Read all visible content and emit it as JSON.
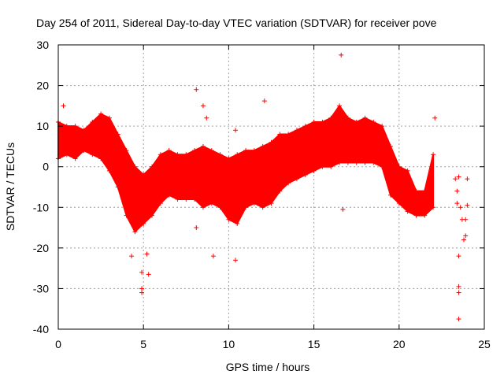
{
  "chart_data": {
    "type": "scatter",
    "title": "Day 254 of 2011, Sidereal Day-to-day VTEC variation (SDTVAR) for receiver pove",
    "xlabel": "GPS time / hours",
    "ylabel": "SDTVAR / TECUs",
    "xlim": [
      0,
      25
    ],
    "ylim": [
      -40,
      30
    ],
    "xticks": [
      0,
      5,
      10,
      15,
      20,
      25
    ],
    "yticks": [
      -40,
      -30,
      -20,
      -10,
      0,
      10,
      20,
      30
    ],
    "grid": true,
    "marker": "+",
    "color": "#ff0000",
    "series": [
      {
        "name": "SDTVAR",
        "band": [
          {
            "x": 0.0,
            "lo": 2,
            "hi": 11
          },
          {
            "x": 0.5,
            "lo": 3,
            "hi": 10
          },
          {
            "x": 1.0,
            "lo": 2,
            "hi": 10
          },
          {
            "x": 1.5,
            "lo": 4,
            "hi": 9
          },
          {
            "x": 2.0,
            "lo": 3,
            "hi": 11
          },
          {
            "x": 2.5,
            "lo": 2,
            "hi": 13
          },
          {
            "x": 3.0,
            "lo": -1,
            "hi": 12
          },
          {
            "x": 3.5,
            "lo": -5,
            "hi": 8
          },
          {
            "x": 4.0,
            "lo": -12,
            "hi": 4
          },
          {
            "x": 4.5,
            "lo": -16,
            "hi": 0
          },
          {
            "x": 5.0,
            "lo": -14,
            "hi": -2
          },
          {
            "x": 5.5,
            "lo": -12,
            "hi": 0
          },
          {
            "x": 6.0,
            "lo": -9,
            "hi": 3
          },
          {
            "x": 6.5,
            "lo": -7,
            "hi": 4
          },
          {
            "x": 7.0,
            "lo": -8,
            "hi": 3
          },
          {
            "x": 7.5,
            "lo": -8,
            "hi": 3
          },
          {
            "x": 8.0,
            "lo": -8,
            "hi": 4
          },
          {
            "x": 8.5,
            "lo": -10,
            "hi": 5
          },
          {
            "x": 9.0,
            "lo": -9,
            "hi": 4
          },
          {
            "x": 9.5,
            "lo": -10,
            "hi": 3
          },
          {
            "x": 10.0,
            "lo": -13,
            "hi": 2
          },
          {
            "x": 10.5,
            "lo": -14,
            "hi": 3
          },
          {
            "x": 11.0,
            "lo": -10,
            "hi": 4
          },
          {
            "x": 11.5,
            "lo": -9,
            "hi": 4
          },
          {
            "x": 12.0,
            "lo": -10,
            "hi": 5
          },
          {
            "x": 12.5,
            "lo": -9,
            "hi": 6
          },
          {
            "x": 13.0,
            "lo": -6,
            "hi": 8
          },
          {
            "x": 13.5,
            "lo": -4,
            "hi": 8
          },
          {
            "x": 14.0,
            "lo": -3,
            "hi": 9
          },
          {
            "x": 14.5,
            "lo": -2,
            "hi": 10
          },
          {
            "x": 15.0,
            "lo": -1,
            "hi": 11
          },
          {
            "x": 15.5,
            "lo": 0,
            "hi": 11
          },
          {
            "x": 16.0,
            "lo": 0,
            "hi": 12
          },
          {
            "x": 16.5,
            "lo": 1,
            "hi": 15
          },
          {
            "x": 17.0,
            "lo": 1,
            "hi": 12
          },
          {
            "x": 17.5,
            "lo": 1,
            "hi": 11
          },
          {
            "x": 18.0,
            "lo": 1,
            "hi": 12
          },
          {
            "x": 18.5,
            "lo": 1,
            "hi": 11
          },
          {
            "x": 19.0,
            "lo": 0,
            "hi": 10
          },
          {
            "x": 19.5,
            "lo": -7,
            "hi": 5
          },
          {
            "x": 20.0,
            "lo": -9,
            "hi": 0
          },
          {
            "x": 20.5,
            "lo": -11,
            "hi": -1
          },
          {
            "x": 21.0,
            "lo": -12,
            "hi": -6
          },
          {
            "x": 21.5,
            "lo": -12,
            "hi": -6
          },
          {
            "x": 22.0,
            "lo": -10,
            "hi": 3
          }
        ],
        "outliers": [
          {
            "x": 16.6,
            "y": 27.5
          },
          {
            "x": 8.1,
            "y": 19
          },
          {
            "x": 12.1,
            "y": 16.2
          },
          {
            "x": 0.3,
            "y": 15
          },
          {
            "x": 8.5,
            "y": 15
          },
          {
            "x": 22.1,
            "y": 12
          },
          {
            "x": 8.7,
            "y": 12
          },
          {
            "x": 10.4,
            "y": 9
          },
          {
            "x": 4.9,
            "y": -31
          },
          {
            "x": 4.9,
            "y": -30
          },
          {
            "x": 4.9,
            "y": -26
          },
          {
            "x": 5.3,
            "y": -26.5
          },
          {
            "x": 4.3,
            "y": -22
          },
          {
            "x": 5.2,
            "y": -21.5
          },
          {
            "x": 9.1,
            "y": -22
          },
          {
            "x": 10.4,
            "y": -23
          },
          {
            "x": 8.1,
            "y": -15
          },
          {
            "x": 16.7,
            "y": -10.5
          },
          {
            "x": 23.5,
            "y": -37.5
          },
          {
            "x": 23.5,
            "y": -31
          },
          {
            "x": 23.5,
            "y": -29.5
          },
          {
            "x": 23.5,
            "y": -22
          },
          {
            "x": 23.4,
            "y": -6
          },
          {
            "x": 23.3,
            "y": -3
          },
          {
            "x": 23.5,
            "y": -2.5
          },
          {
            "x": 23.6,
            "y": -10
          },
          {
            "x": 23.7,
            "y": -13
          },
          {
            "x": 23.9,
            "y": -17
          },
          {
            "x": 23.9,
            "y": -13
          },
          {
            "x": 24.0,
            "y": -9.5
          },
          {
            "x": 24.0,
            "y": -3
          },
          {
            "x": 23.4,
            "y": -9
          },
          {
            "x": 23.8,
            "y": -18
          }
        ]
      }
    ]
  }
}
